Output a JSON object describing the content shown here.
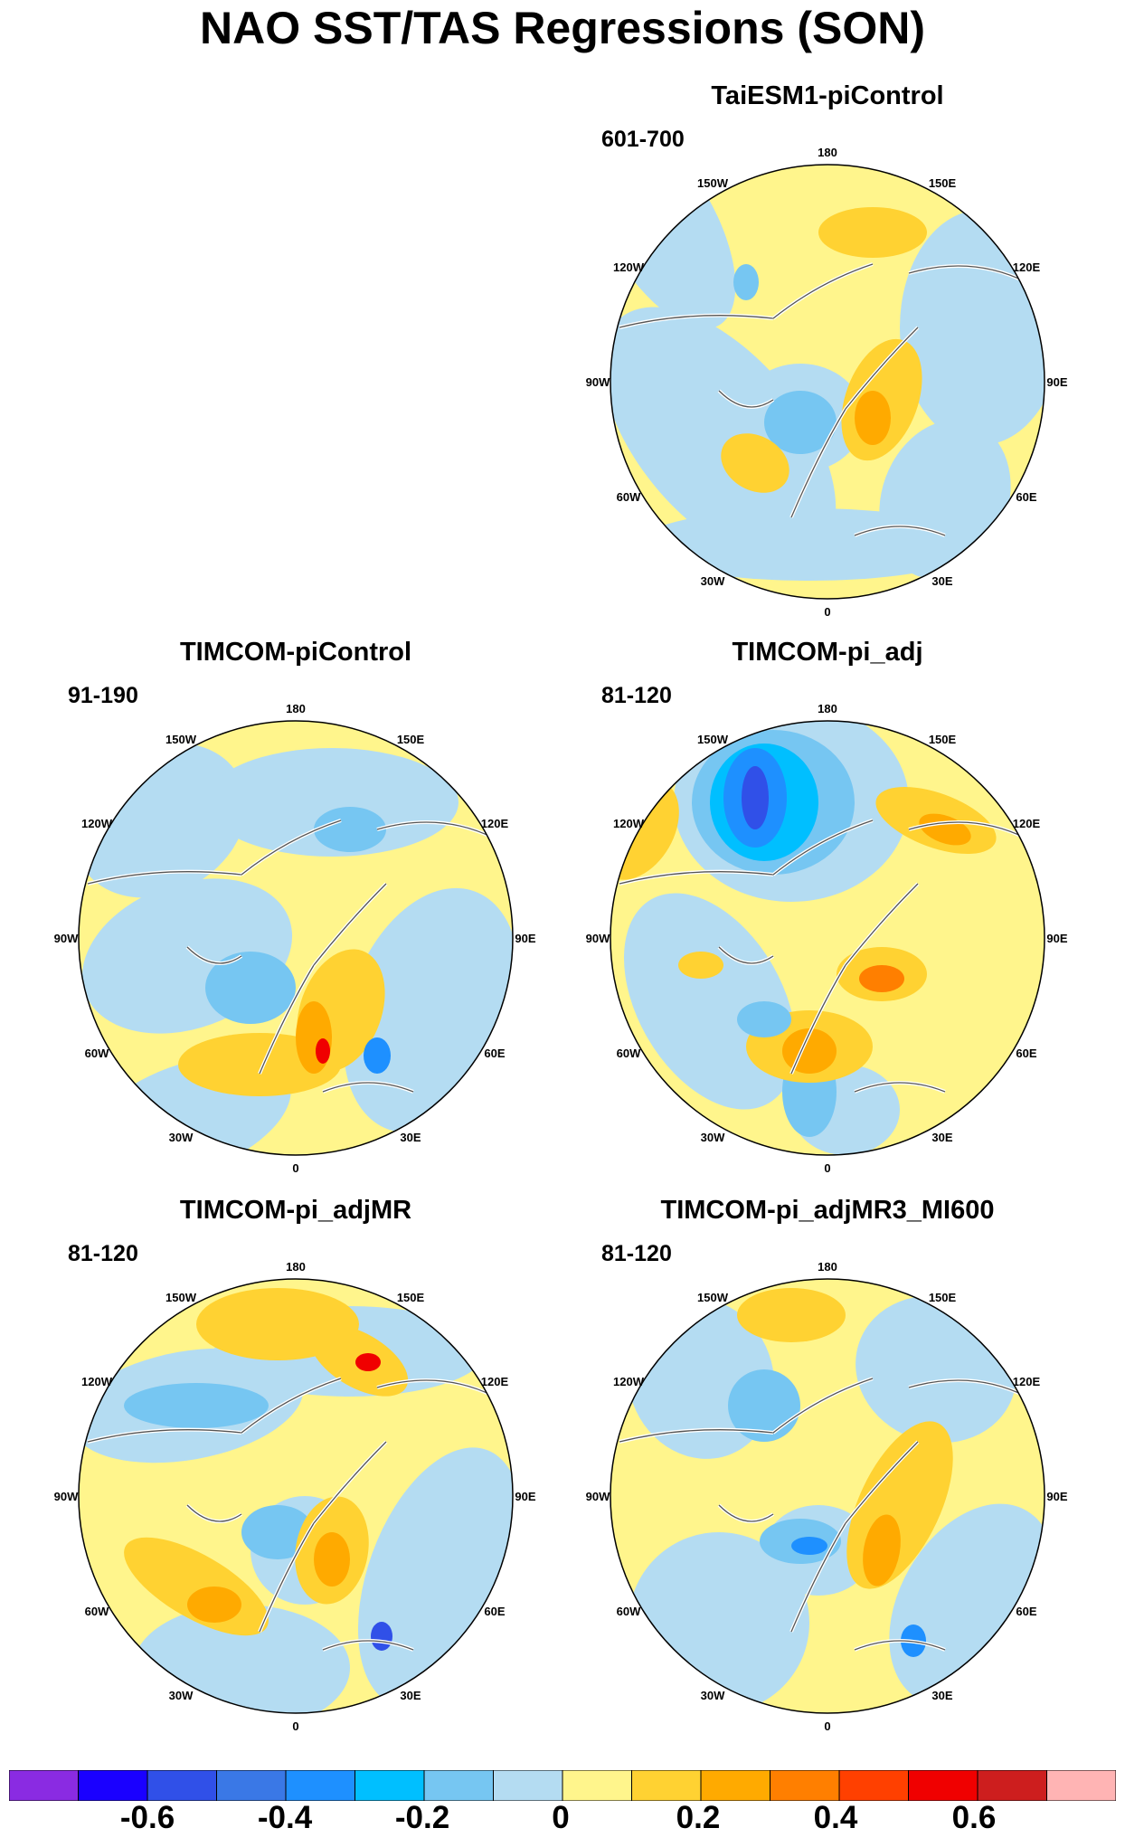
{
  "title": "NAO SST/TAS Regressions (SON)",
  "panels": [
    {
      "name": "TaiESM1-piControl",
      "years": "601-700"
    },
    {
      "name": "TIMCOM-piControl",
      "years": "91-190"
    },
    {
      "name": "TIMCOM-pi_adj",
      "years": "81-120"
    },
    {
      "name": "TIMCOM-pi_adjMR",
      "years": "81-120"
    },
    {
      "name": "TIMCOM-pi_adjMR3_MI600",
      "years": "81-120"
    }
  ],
  "longitude_labels": {
    "top": "180",
    "bottom": "0",
    "left": "90W",
    "right": "90E",
    "upper_left": "150W",
    "upper_right": "150E",
    "mid_upper_left": "120W",
    "mid_upper_right": "120E",
    "mid_lower_left": "60W",
    "mid_lower_right": "60E",
    "lower_left": "30W",
    "lower_right": "30E"
  },
  "colorbar": {
    "colors": [
      "#8a2be2",
      "#1a00ff",
      "#3050e8",
      "#3a78e6",
      "#1e90ff",
      "#00bfff",
      "#76c6f2",
      "#b4dcf2",
      "#fff58c",
      "#ffd232",
      "#ffaa00",
      "#ff7f00",
      "#ff4000",
      "#f00000",
      "#cd1e1e",
      "#ffb4b4"
    ],
    "labels": [
      "-0.6",
      "-0.4",
      "-0.2",
      "0",
      "0.2",
      "0.4",
      "0.6"
    ]
  }
}
